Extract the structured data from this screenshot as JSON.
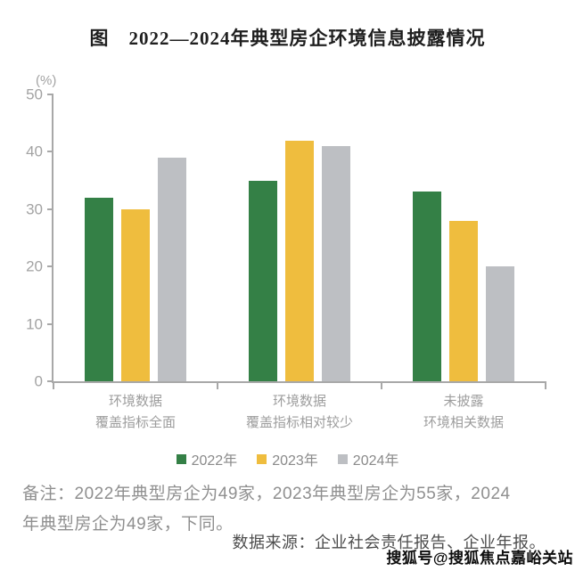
{
  "chart_data": {
    "type": "bar",
    "title": "图　2022—2024年典型房企环境信息披露情况",
    "unit_label": "(%)",
    "ylim": [
      0,
      50
    ],
    "yticks": [
      0,
      10,
      20,
      30,
      40,
      50
    ],
    "grid": false,
    "legend_position": "bottom",
    "categories": [
      [
        "环境数据",
        "覆盖指标全面"
      ],
      [
        "环境数据",
        "覆盖指标相对较少"
      ],
      [
        "未披露",
        "环境相关数据"
      ]
    ],
    "series": [
      {
        "name": "2022年",
        "color": "#348046",
        "values": [
          32,
          35,
          33
        ]
      },
      {
        "name": "2023年",
        "color": "#efbd3e",
        "values": [
          30,
          42,
          28
        ]
      },
      {
        "name": "2024年",
        "color": "#bdbfc3",
        "values": [
          39,
          41,
          20
        ]
      }
    ]
  },
  "notes": {
    "note_lines": [
      "备注：2022年典型房企为49家，2023年典型房企为55家，2024",
      "年典型房企为49家，下同。"
    ],
    "source": "数据来源：企业社会责任报告、企业年报。",
    "watermark": "搜狐号@搜狐焦点嘉峪关站"
  },
  "colors": {
    "axis": "#a8a8a8",
    "title_text": "#1f1f1f",
    "tick_text": "#a3a3a3",
    "category_text": "#9d9d9d",
    "note_text": "#8f8f8f",
    "source_text": "#4d4d4d"
  }
}
